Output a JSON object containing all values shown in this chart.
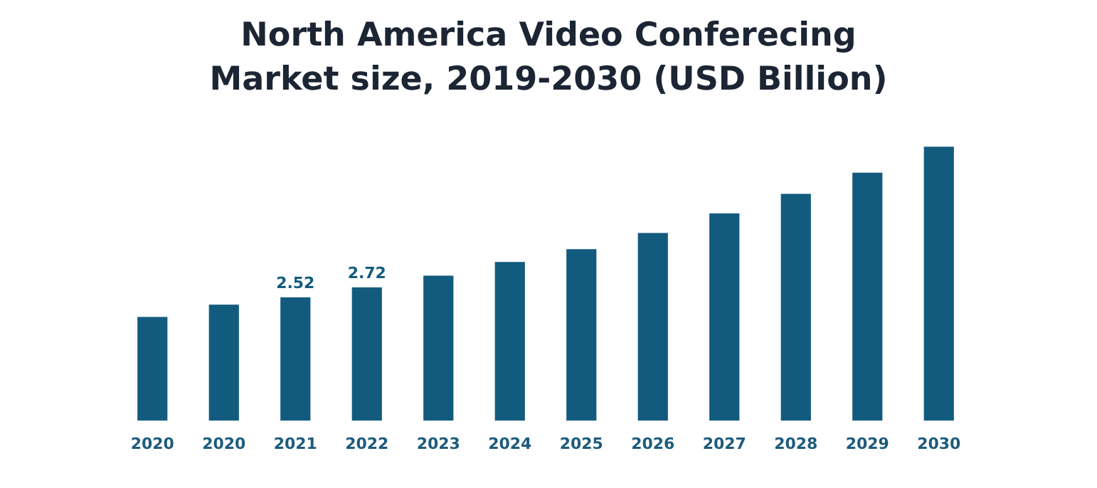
{
  "chart_data": {
    "type": "bar",
    "title": "North America Video Conferecing\nMarket size, 2019-2030 (USD Billion)",
    "categories": [
      "2020",
      "2020",
      "2021",
      "2022",
      "2023",
      "2024",
      "2025",
      "2026",
      "2027",
      "2028",
      "2029",
      "2030"
    ],
    "values": [
      2.12,
      2.37,
      2.52,
      2.72,
      2.96,
      3.24,
      3.5,
      3.83,
      4.23,
      4.63,
      5.06,
      5.59
    ],
    "value_labels": [
      null,
      null,
      "2.52",
      "2.72",
      null,
      null,
      null,
      null,
      null,
      null,
      null,
      null
    ],
    "color": "#135b7e",
    "grid": false,
    "legend": false,
    "tick_labels": "x"
  }
}
